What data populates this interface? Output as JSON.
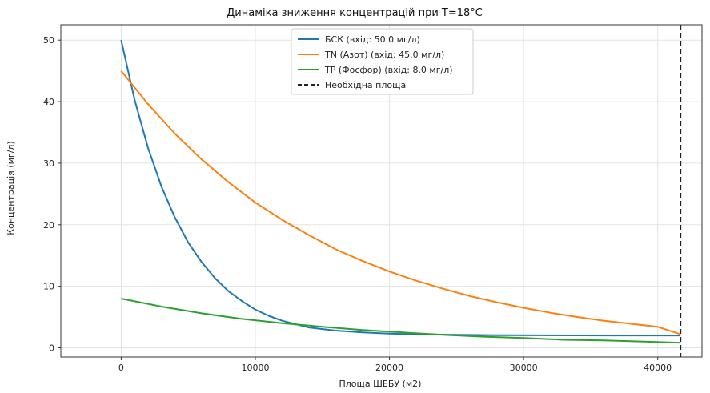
{
  "chart_data": {
    "type": "line",
    "title": "Динаміка зниження концентрацій при T=18°C",
    "xlabel": "Площа ШЕБУ (м2)",
    "ylabel": "Концентрація (мг/л)",
    "xlim": [
      -4500,
      43300
    ],
    "ylim": [
      -1.5,
      52.5
    ],
    "xticks": [
      0,
      10000,
      20000,
      30000,
      40000
    ],
    "xtick_labels": [
      "0",
      "10000",
      "20000",
      "30000",
      "40000"
    ],
    "yticks": [
      0,
      10,
      20,
      30,
      40,
      50
    ],
    "ytick_labels": [
      "0",
      "10",
      "20",
      "30",
      "40",
      "50"
    ],
    "grid": true,
    "legend_position": "top-center",
    "series": [
      {
        "name": "БСК (вхід: 50.0 мг/л)",
        "color": "#1f77b4",
        "x": [
          0,
          1000,
          2000,
          3000,
          4000,
          5000,
          6000,
          7000,
          8000,
          9000,
          10000,
          11000,
          12000,
          14000,
          16000,
          18000,
          20000,
          22000,
          25000,
          28000,
          31000,
          34000,
          37000,
          40000,
          41700
        ],
        "y": [
          50,
          40.3,
          32.5,
          26.2,
          21.2,
          17.1,
          13.9,
          11.3,
          9.2,
          7.6,
          6.2,
          5.2,
          4.4,
          3.3,
          2.8,
          2.5,
          2.3,
          2.2,
          2.1,
          2.05,
          2.02,
          2.01,
          2.0,
          2.0,
          2.0
        ]
      },
      {
        "name": "TN (Азот) (вхід: 45.0 мг/л)",
        "color": "#ff7f0e",
        "x": [
          0,
          2000,
          4000,
          6000,
          8000,
          10000,
          12000,
          14000,
          16000,
          18000,
          20000,
          22000,
          24000,
          26000,
          28000,
          30000,
          32000,
          34000,
          36000,
          38000,
          40000,
          41700
        ],
        "y": [
          45,
          39.6,
          34.8,
          30.6,
          26.9,
          23.6,
          20.8,
          18.3,
          16.0,
          14.1,
          12.4,
          10.9,
          9.6,
          8.4,
          7.4,
          6.5,
          5.7,
          5.0,
          4.4,
          3.9,
          3.4,
          2.2
        ]
      },
      {
        "name": "TP (Фосфор) (вхід: 8.0 мг/л)",
        "color": "#2ca02c",
        "x": [
          0,
          3000,
          6000,
          9000,
          12000,
          15000,
          18000,
          21000,
          24000,
          27000,
          30000,
          33000,
          36000,
          39000,
          41700
        ],
        "y": [
          8.0,
          6.7,
          5.6,
          4.7,
          4.0,
          3.4,
          2.9,
          2.5,
          2.1,
          1.8,
          1.6,
          1.3,
          1.2,
          1.0,
          0.8
        ]
      }
    ],
    "vlines": [
      {
        "name": "Необхідна площа",
        "x": 41700,
        "color": "#222222",
        "style": "dashed"
      }
    ]
  }
}
